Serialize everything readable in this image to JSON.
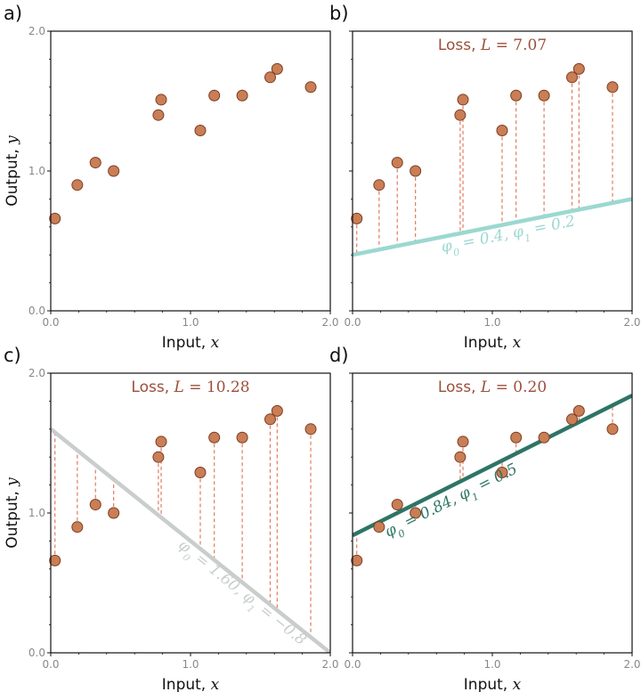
{
  "chart_data": [
    {
      "panel": "a)",
      "type": "scatter",
      "xlabel": "Input, x",
      "ylabel": "Output, y",
      "xlim": [
        0,
        2
      ],
      "ylim": [
        0,
        2
      ],
      "xticks": [
        "0.0",
        "1.0",
        "2.0"
      ],
      "yticks": [
        "0.0",
        "1.0",
        "2.0"
      ],
      "x": [
        0.03,
        0.19,
        0.32,
        0.45,
        0.77,
        0.79,
        1.07,
        1.17,
        1.37,
        1.57,
        1.62,
        1.86
      ],
      "y": [
        0.66,
        0.9,
        1.06,
        1.0,
        1.4,
        1.51,
        1.29,
        1.54,
        1.54,
        1.67,
        1.73,
        1.6
      ],
      "loss_text": "",
      "fit_line": null
    },
    {
      "panel": "b)",
      "type": "scatter",
      "xlabel": "Input, x",
      "ylabel": "",
      "xlim": [
        0,
        2
      ],
      "ylim": [
        0,
        2
      ],
      "xticks": [
        "0.0",
        "1.0",
        "2.0"
      ],
      "yticks": [],
      "x": [
        0.03,
        0.19,
        0.32,
        0.45,
        0.77,
        0.79,
        1.07,
        1.17,
        1.37,
        1.57,
        1.62,
        1.86
      ],
      "y": [
        0.66,
        0.9,
        1.06,
        1.0,
        1.4,
        1.51,
        1.29,
        1.54,
        1.54,
        1.67,
        1.73,
        1.6
      ],
      "loss_text": "Loss, L = 7.07",
      "fit_line": {
        "phi0": 0.4,
        "phi1": 0.2,
        "label": "φ0 = 0.4, φ1 = 0.2",
        "color": "#9bd8d0"
      }
    },
    {
      "panel": "c)",
      "type": "scatter",
      "xlabel": "Input, x",
      "ylabel": "Output, y",
      "xlim": [
        0,
        2
      ],
      "ylim": [
        0,
        2
      ],
      "xticks": [
        "0.0",
        "1.0",
        "2.0"
      ],
      "yticks": [
        "0.0",
        "1.0",
        "2.0"
      ],
      "x": [
        0.03,
        0.19,
        0.32,
        0.45,
        0.77,
        0.79,
        1.07,
        1.17,
        1.37,
        1.57,
        1.62,
        1.86
      ],
      "y": [
        0.66,
        0.9,
        1.06,
        1.0,
        1.4,
        1.51,
        1.29,
        1.54,
        1.54,
        1.67,
        1.73,
        1.6
      ],
      "loss_text": "Loss, L = 10.28",
      "fit_line": {
        "phi0": 1.6,
        "phi1": -0.8,
        "label": "φ0 = 1.60, φ1 = −0.8",
        "color": "#c9cdcc"
      }
    },
    {
      "panel": "d)",
      "type": "scatter",
      "xlabel": "Input, x",
      "ylabel": "",
      "xlim": [
        0,
        2
      ],
      "ylim": [
        0,
        2
      ],
      "xticks": [
        "0.0",
        "1.0",
        "2.0"
      ],
      "yticks": [],
      "x": [
        0.03,
        0.19,
        0.32,
        0.45,
        0.77,
        0.79,
        1.07,
        1.17,
        1.37,
        1.57,
        1.62,
        1.86
      ],
      "y": [
        0.66,
        0.9,
        1.06,
        1.0,
        1.4,
        1.51,
        1.29,
        1.54,
        1.54,
        1.67,
        1.73,
        1.6
      ],
      "loss_text": "Loss, L = 0.20",
      "fit_line": {
        "phi0": 0.84,
        "phi1": 0.5,
        "label": "φ0 = 0.84, φ1 = 0.5",
        "color": "#2e7566"
      }
    }
  ],
  "colors": {
    "point_fill": "#c97e55",
    "point_stroke": "#7a3d22",
    "residual": "#e07c5f",
    "loss_text": "#9c4f3a"
  }
}
